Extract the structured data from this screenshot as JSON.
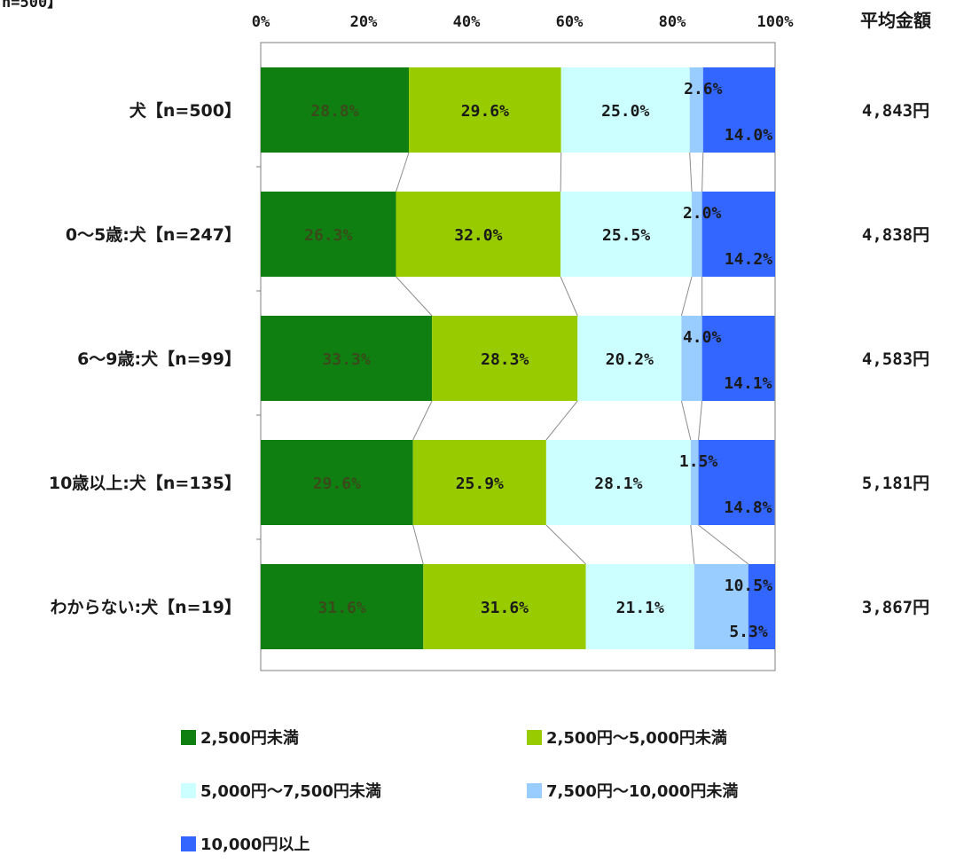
{
  "chart_data": {
    "type": "bar",
    "orientation": "horizontal",
    "stacked": true,
    "percent": true,
    "sample_label": "n=500】",
    "xlim": [
      0,
      100
    ],
    "x_ticks": [
      "0%",
      "20%",
      "40%",
      "60%",
      "80%",
      "100%"
    ],
    "categories": [
      "犬【n=500】",
      "0～5歳:犬【n=247】",
      "6～9歳:犬【n=99】",
      "10歳以上:犬【n=135】",
      "わからない:犬【n=19】"
    ],
    "series": [
      {
        "name": "2,500円未満",
        "color": "#0f7f12",
        "label_color": "#3a4a1a",
        "values": [
          28.8,
          26.3,
          33.3,
          29.6,
          31.6
        ],
        "labels": [
          "28.8%",
          "26.3%",
          "33.3%",
          "29.6%",
          "31.6%"
        ]
      },
      {
        "name": "2,500円～5,000円未満",
        "color": "#99cc00",
        "label_color": "#1a1a1a",
        "values": [
          29.6,
          32.0,
          28.3,
          25.9,
          31.6
        ],
        "labels": [
          "29.6%",
          "32.0%",
          "28.3%",
          "25.9%",
          "31.6%"
        ]
      },
      {
        "name": "5,000円～7,500円未満",
        "color": "#ccffff",
        "label_color": "#1a1a1a",
        "values": [
          25.0,
          25.5,
          20.2,
          28.1,
          21.1
        ],
        "labels": [
          "25.0%",
          "25.5%",
          "20.2%",
          "28.1%",
          "21.1%"
        ]
      },
      {
        "name": "7,500円～10,000円未満",
        "color": "#99ccff",
        "label_color": "#1a1a1a",
        "values": [
          2.6,
          2.0,
          4.0,
          1.5,
          10.5
        ],
        "labels": [
          "2.6%",
          "2.0%",
          "4.0%",
          "1.5%",
          "10.5%"
        ]
      },
      {
        "name": "10,000円以上",
        "color": "#3366ff",
        "label_color": "#1a1a1a",
        "values": [
          14.0,
          14.2,
          14.1,
          14.8,
          5.3
        ],
        "labels": [
          "14.0%",
          "14.2%",
          "14.1%",
          "14.8%",
          "5.3%"
        ]
      }
    ],
    "side_column": {
      "title": "平均金額",
      "values": [
        "4,843円",
        "4,838円",
        "4,583円",
        "5,181円",
        "3,867円"
      ]
    },
    "legend_position": "bottom",
    "series_connector_lines": true,
    "grid": false
  }
}
